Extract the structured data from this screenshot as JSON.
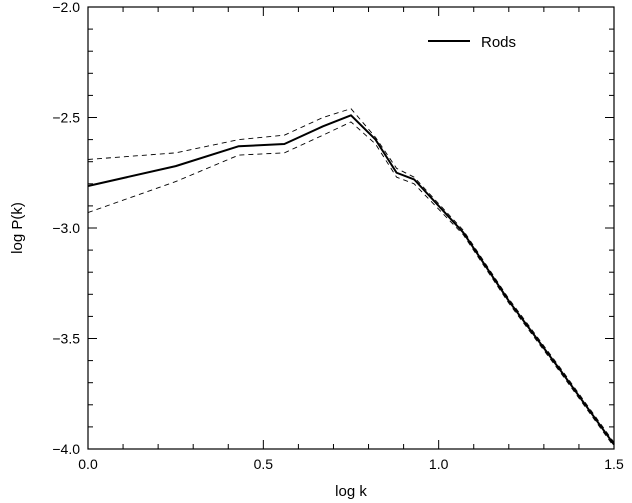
{
  "chart_data": {
    "type": "line",
    "title": "",
    "xlabel": "log k",
    "ylabel": "log P(k)",
    "xlim": [
      0.0,
      1.5
    ],
    "ylim": [
      -4.0,
      -2.0
    ],
    "xticks": [
      0.0,
      0.5,
      1.0,
      1.5
    ],
    "xtick_labels": [
      "0.0",
      "0.5",
      "1.0",
      "1.5"
    ],
    "yticks": [
      -4.0,
      -3.5,
      -3.0,
      -2.5,
      -2.0
    ],
    "ytick_labels": [
      "−4.0",
      "−3.5",
      "−3.0",
      "−2.5",
      "−2.0"
    ],
    "grid": false,
    "legend": {
      "position": "top-right",
      "entries": [
        "Rods"
      ]
    },
    "series": [
      {
        "name": "Rods",
        "style": "solid",
        "color": "#000000",
        "x": [
          0.0,
          0.25,
          0.43,
          0.56,
          0.67,
          0.75,
          0.82,
          0.88,
          0.93,
          1.07,
          1.2,
          1.35,
          1.5
        ],
        "y": [
          -2.81,
          -2.72,
          -2.63,
          -2.62,
          -2.54,
          -2.49,
          -2.6,
          -2.75,
          -2.78,
          -3.02,
          -3.33,
          -3.65,
          -3.98
        ]
      },
      {
        "style": "dashed",
        "color": "#000000",
        "x": [
          0.0,
          0.25,
          0.43,
          0.56,
          0.67,
          0.75,
          0.82,
          0.88,
          0.93,
          1.07,
          1.2,
          1.35,
          1.5
        ],
        "y": [
          -2.69,
          -2.66,
          -2.6,
          -2.58,
          -2.5,
          -2.46,
          -2.59,
          -2.73,
          -2.77,
          -3.01,
          -3.32,
          -3.64,
          -3.97
        ]
      },
      {
        "style": "dashed",
        "color": "#000000",
        "x": [
          0.0,
          0.25,
          0.43,
          0.56,
          0.67,
          0.75,
          0.82,
          0.88,
          0.93,
          1.07,
          1.2,
          1.35,
          1.5
        ],
        "y": [
          -2.93,
          -2.79,
          -2.67,
          -2.66,
          -2.58,
          -2.52,
          -2.62,
          -2.77,
          -2.8,
          -3.03,
          -3.34,
          -3.66,
          -3.99
        ]
      }
    ]
  }
}
